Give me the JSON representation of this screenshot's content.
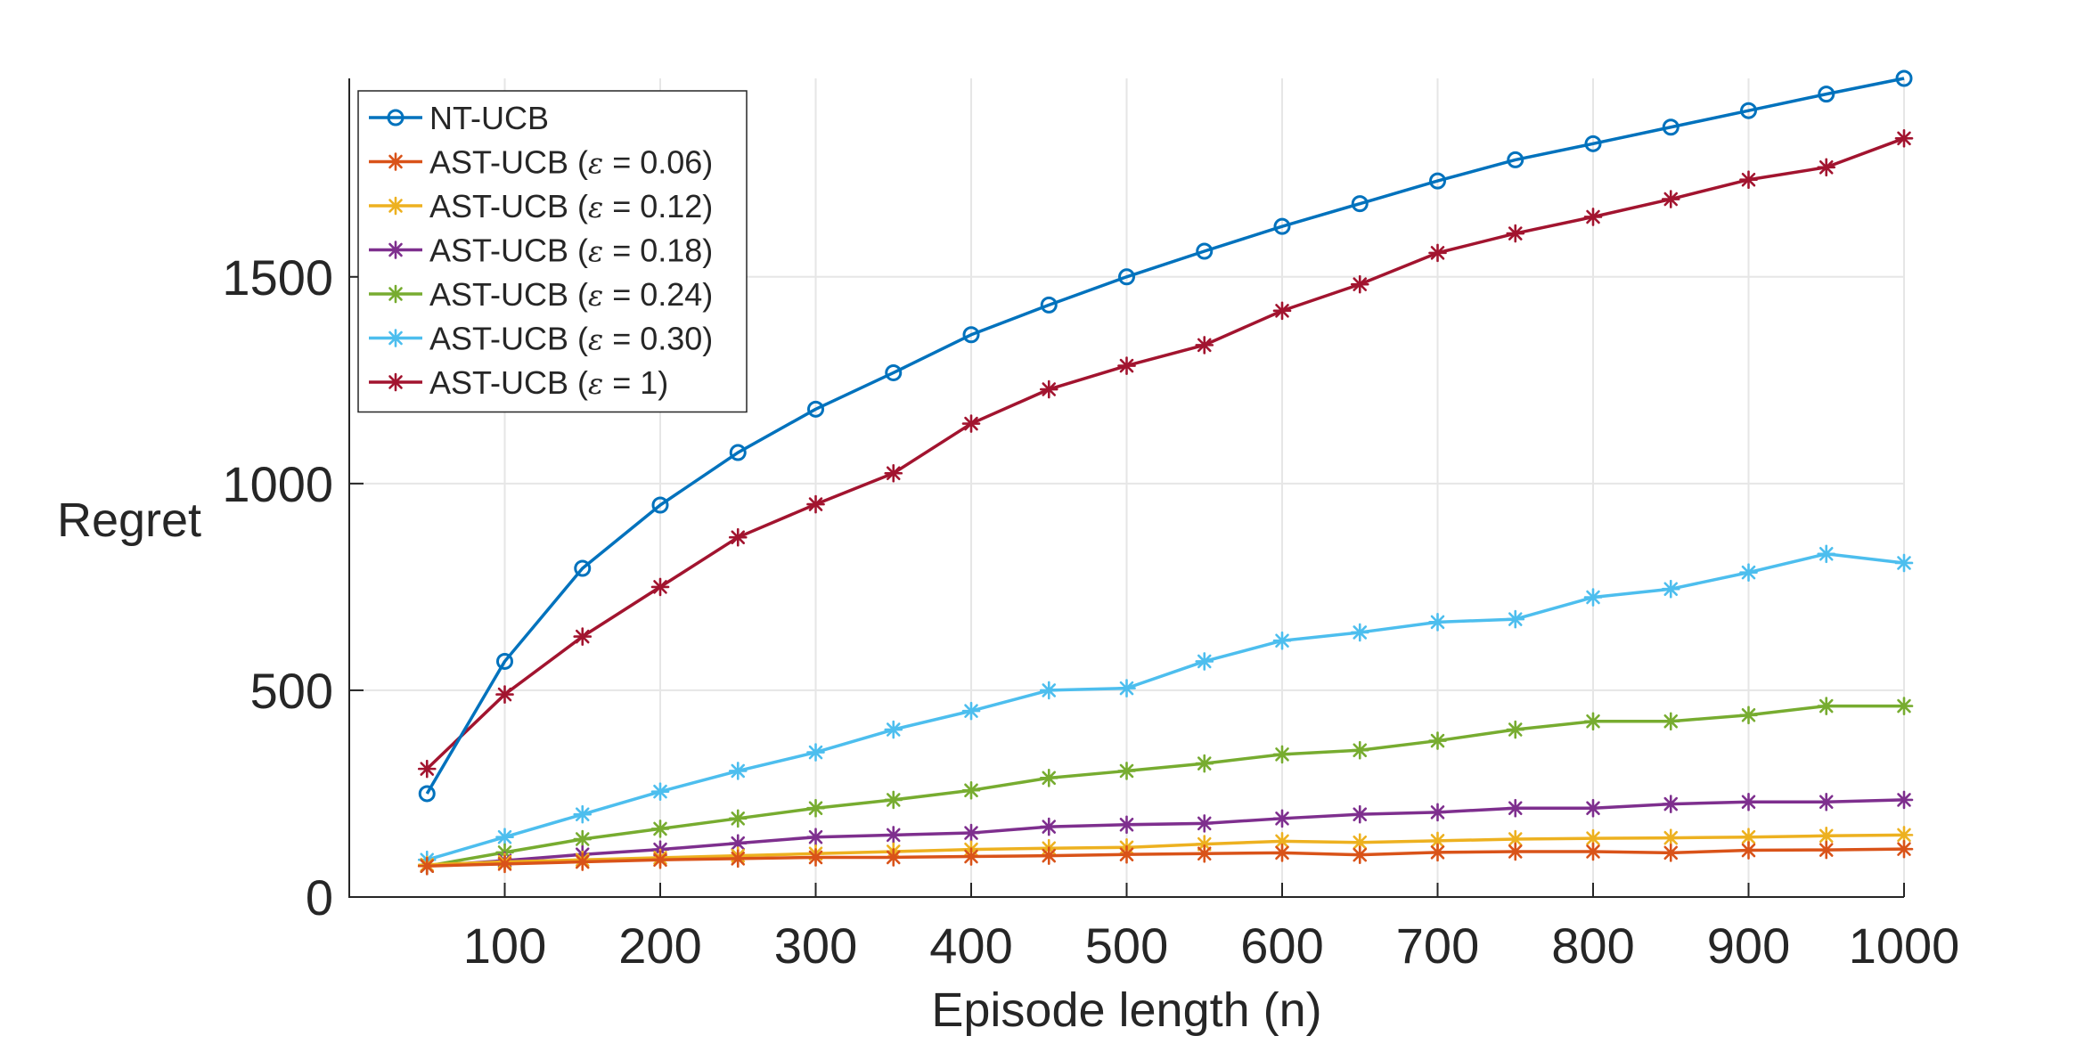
{
  "chart_data": {
    "type": "line",
    "xlabel": "Episode length (n)",
    "ylabel": "Regret",
    "xlim": [
      0,
      1000
    ],
    "ylim": [
      0,
      1980
    ],
    "xticks": [
      100,
      200,
      300,
      400,
      500,
      600,
      700,
      800,
      900,
      1000
    ],
    "xtick_labels": [
      "100",
      "200",
      "300",
      "400",
      "500",
      "600",
      "700",
      "800",
      "900",
      "1000"
    ],
    "yticks": [
      0,
      500,
      1000,
      1500
    ],
    "ytick_labels": [
      "0",
      "500",
      "1000",
      "1500"
    ],
    "grid": true,
    "legend_position": "top-left",
    "x": [
      50,
      100,
      150,
      200,
      250,
      300,
      350,
      400,
      450,
      500,
      550,
      600,
      650,
      700,
      750,
      800,
      850,
      900,
      950,
      1000
    ],
    "series": [
      {
        "name": "NT-UCB",
        "legend_label": {
          "prefix": "NT-UCB",
          "epsilon": "",
          "suffix": ""
        },
        "color": "#0072BD",
        "marker": "circle",
        "values": [
          250,
          570,
          795,
          948,
          1075,
          1180,
          1268,
          1360,
          1432,
          1500,
          1562,
          1622,
          1677,
          1732,
          1783,
          1822,
          1862,
          1902,
          1942,
          1980
        ]
      },
      {
        "name": "AST-UCB (ε = 0.06)",
        "legend_label": {
          "prefix": "AST-UCB (",
          "epsilon": "ε",
          "suffix": " = 0.06)"
        },
        "color": "#D95319",
        "marker": "asterisk",
        "values": [
          75,
          80,
          85,
          90,
          93,
          96,
          96,
          98,
          100,
          103,
          105,
          107,
          102,
          108,
          110,
          110,
          107,
          113,
          114,
          116
        ]
      },
      {
        "name": "AST-UCB (ε = 0.12)",
        "legend_label": {
          "prefix": "AST-UCB (",
          "epsilon": "ε",
          "suffix": " = 0.12)"
        },
        "color": "#EDB120",
        "marker": "asterisk",
        "values": [
          78,
          85,
          90,
          95,
          100,
          105,
          110,
          115,
          118,
          120,
          128,
          135,
          132,
          136,
          140,
          142,
          143,
          145,
          148,
          150
        ]
      },
      {
        "name": "AST-UCB (ε = 0.18)",
        "legend_label": {
          "prefix": "AST-UCB (",
          "epsilon": "ε",
          "suffix": " = 0.18)"
        },
        "color": "#7E2F8E",
        "marker": "asterisk",
        "values": [
          75,
          88,
          103,
          115,
          130,
          145,
          150,
          155,
          170,
          175,
          178,
          190,
          200,
          205,
          215,
          215,
          225,
          230,
          230,
          235
        ]
      },
      {
        "name": "AST-UCB (ε = 0.24)",
        "legend_label": {
          "prefix": "AST-UCB (",
          "epsilon": "ε",
          "suffix": " = 0.24)"
        },
        "color": "#77AC30",
        "marker": "asterisk",
        "values": [
          75,
          108,
          140,
          165,
          190,
          215,
          235,
          258,
          288,
          305,
          323,
          345,
          355,
          378,
          405,
          425,
          425,
          440,
          462,
          462
        ]
      },
      {
        "name": "AST-UCB (ε = 0.30)",
        "legend_label": {
          "prefix": "AST-UCB (",
          "epsilon": "ε",
          "suffix": " = 0.30)"
        },
        "color": "#4DBEEE",
        "marker": "asterisk",
        "values": [
          90,
          145,
          200,
          255,
          305,
          350,
          405,
          450,
          500,
          505,
          570,
          620,
          640,
          665,
          672,
          725,
          745,
          785,
          830,
          808
        ]
      },
      {
        "name": "AST-UCB (ε = 1)",
        "legend_label": {
          "prefix": "AST-UCB (",
          "epsilon": "ε",
          "suffix": " = 1)"
        },
        "color": "#A2142F",
        "marker": "asterisk",
        "values": [
          310,
          490,
          630,
          750,
          870,
          950,
          1025,
          1145,
          1228,
          1285,
          1335,
          1418,
          1482,
          1558,
          1605,
          1645,
          1688,
          1735,
          1765,
          1835
        ]
      }
    ]
  }
}
